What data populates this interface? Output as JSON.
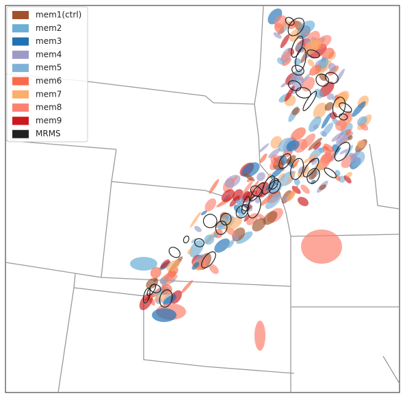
{
  "legend": {
    "items": [
      {
        "label": "mem1(ctrl)",
        "color": "#a0522d"
      },
      {
        "label": "mem2",
        "color": "#6baed6"
      },
      {
        "label": "mem3",
        "color": "#2171b5"
      },
      {
        "label": "mem4",
        "color": "#9e9ac8"
      },
      {
        "label": "mem5",
        "color": "#80b1d8"
      },
      {
        "label": "mem6",
        "color": "#fb6a4a"
      },
      {
        "label": "mem7",
        "color": "#fdae6b"
      },
      {
        "label": "mem8",
        "color": "#fc8270"
      },
      {
        "label": "mem9",
        "color": "#cb181d"
      },
      {
        "label": "MRMS",
        "color": "#222222"
      }
    ]
  }
}
